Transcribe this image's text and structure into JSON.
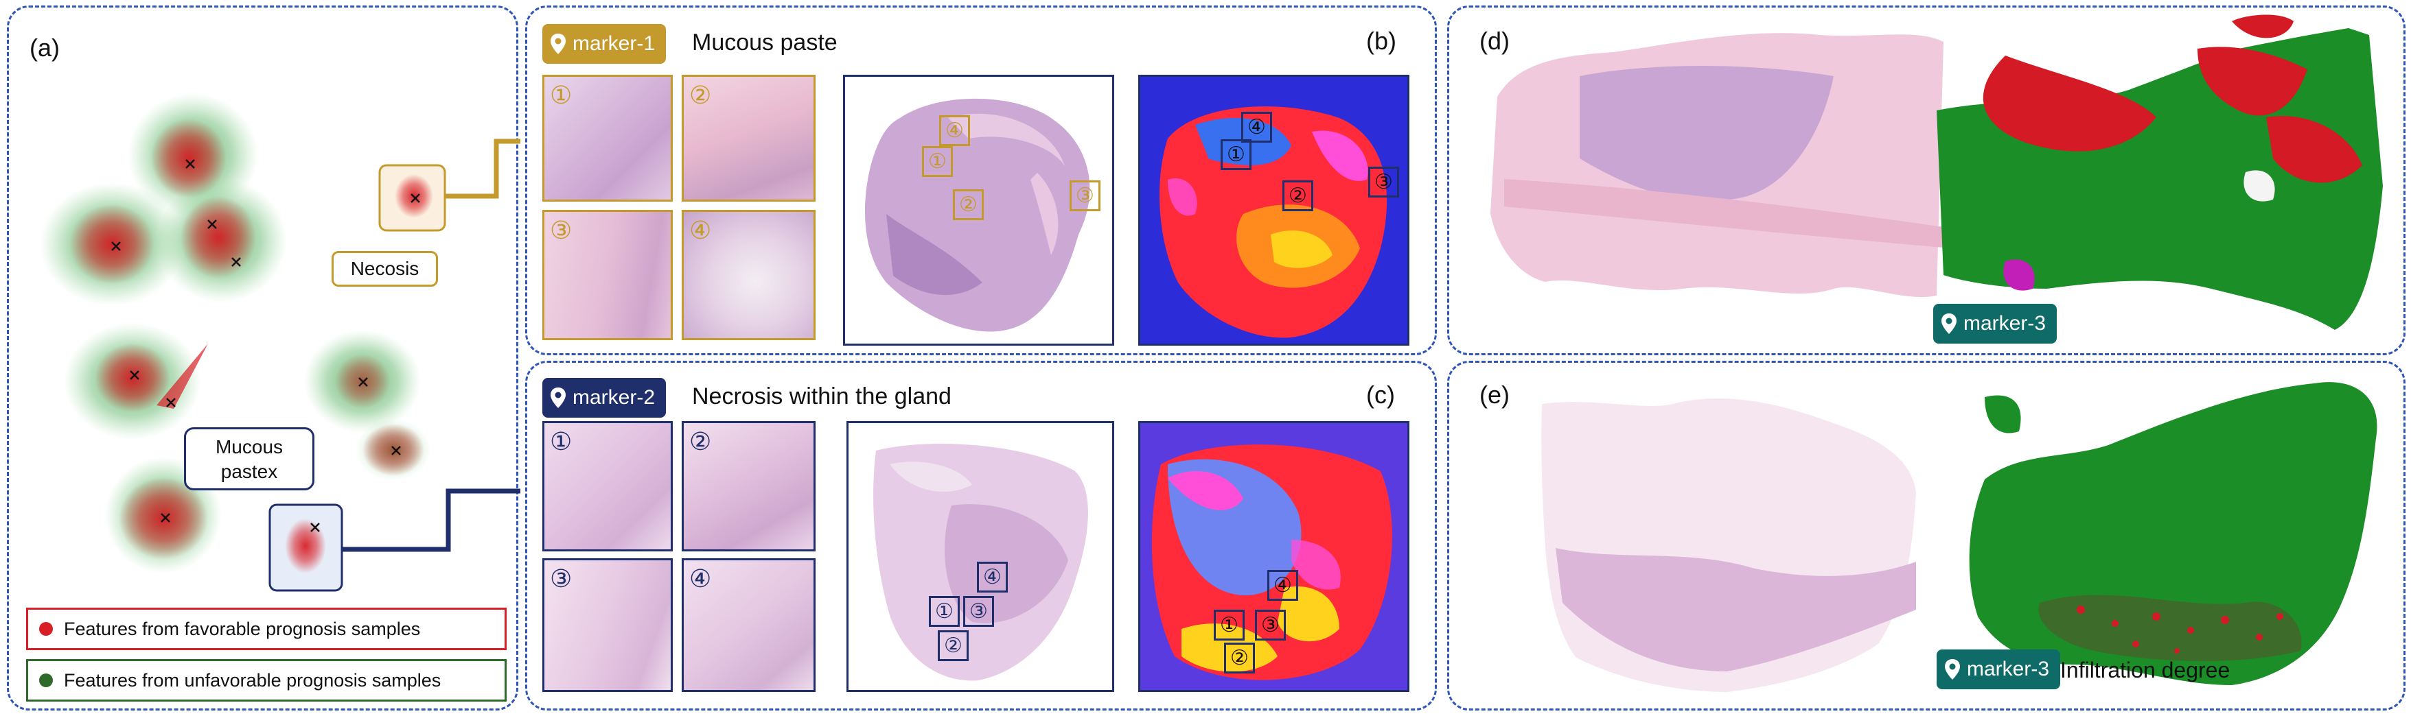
{
  "panel_a": {
    "label": "(a)",
    "legend": {
      "favorable": "Features from favorable prognosis samples",
      "unfavorable": "Features from unfavorable prognosis samples"
    },
    "callouts": {
      "necrosis": "Necosis",
      "mucous": "Mucous pastex"
    },
    "colors": {
      "favorable": "#d81f26",
      "unfavorable": "#2e6b2a"
    }
  },
  "panel_b": {
    "label": "(b)",
    "marker": "marker-1",
    "title": "Mucous paste",
    "tile_numbers": [
      "①",
      "②",
      "③",
      "④"
    ],
    "wsi_boxes": [
      "①",
      "②",
      "③",
      "④"
    ],
    "heat_boxes": [
      "①",
      "②",
      "③",
      "④"
    ],
    "color": "#c49a2c"
  },
  "panel_c": {
    "label": "(c)",
    "marker": "marker-2",
    "title": "Necrosis within the gland",
    "tile_numbers": [
      "①",
      "②",
      "③",
      "④"
    ],
    "wsi_boxes": [
      "①",
      "②",
      "③",
      "④"
    ],
    "heat_boxes": [
      "①",
      "②",
      "③",
      "④"
    ],
    "color": "#1f2f6b"
  },
  "panel_d": {
    "label": "(d)",
    "marker": "marker-3",
    "color": "#0f6b68"
  },
  "panel_e": {
    "label": "(e)",
    "marker": "marker-3",
    "caption": "Infiltration degree",
    "color": "#0f6b68"
  }
}
